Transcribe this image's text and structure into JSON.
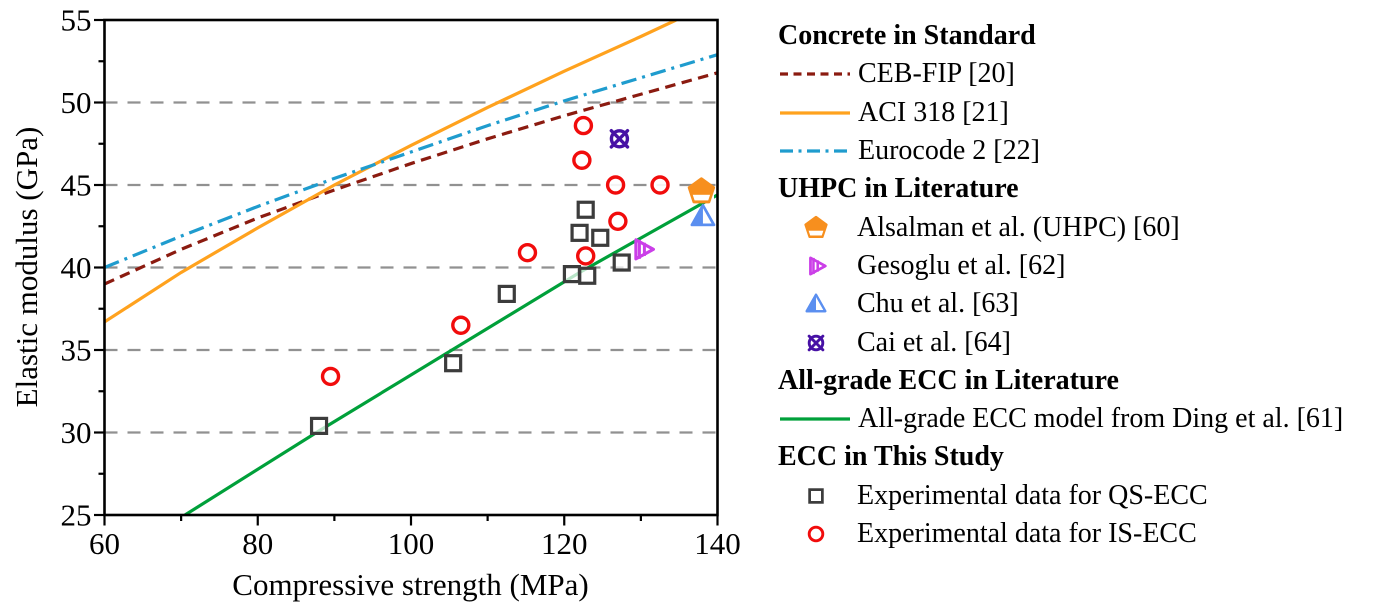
{
  "chart": {
    "xlabel": "Compressive strength (MPa)",
    "ylabel": "Elastic modulus (GPa)",
    "xlim": [
      60,
      140
    ],
    "ylim": [
      25,
      55
    ],
    "x_ticks": [
      60,
      80,
      100,
      120,
      140
    ],
    "x_minor_ticks": [
      70,
      90,
      110,
      130
    ],
    "y_ticks": [
      25,
      30,
      35,
      40,
      45,
      50,
      55
    ],
    "y_minor_ticks": [
      27.5,
      32.5,
      37.5,
      42.5,
      47.5,
      52.5
    ],
    "grid_y": [
      30,
      35,
      40,
      45,
      50
    ],
    "grid_on": true,
    "grid_color": "#919191",
    "frame_color": "#000000",
    "legend_position": "right-outside"
  },
  "chart_data": {
    "type": "scatter",
    "lines": [
      {
        "name": "CEB-FIP [20]",
        "style": "dashed",
        "color": "#8B1B10",
        "x": [
          60,
          70,
          80,
          90,
          100,
          110,
          120,
          130,
          140
        ],
        "y": [
          39.0,
          41.1,
          43.0,
          44.7,
          46.3,
          47.8,
          49.2,
          50.5,
          51.8
        ]
      },
      {
        "name": "ACI 318 [21]",
        "style": "solid",
        "color": "#FFA21E",
        "x": [
          60,
          70,
          80,
          90,
          100,
          110,
          120,
          130,
          134.6
        ],
        "y": [
          36.7,
          39.7,
          42.4,
          45.0,
          47.4,
          49.7,
          51.9,
          54.0,
          55.0
        ]
      },
      {
        "name": "Eurocode 2 [22]",
        "style": "dashdot",
        "color": "#1F9CCE",
        "x": [
          60,
          70,
          80,
          90,
          100,
          110,
          120,
          130,
          140
        ],
        "y": [
          40.0,
          41.9,
          43.7,
          45.4,
          47.0,
          48.6,
          50.1,
          51.5,
          52.9
        ]
      },
      {
        "name": "All-grade ECC model from Ding et al. [61]",
        "style": "solid",
        "color": "#00A03A",
        "x": [
          70.5,
          88,
          105,
          122,
          140
        ],
        "y": [
          25.0,
          30.1,
          34.9,
          39.7,
          44.4
        ]
      }
    ],
    "scatter": [
      {
        "name": "Alsalman et al. (UHPC) [60]",
        "marker": "pentagon-half",
        "color": "#F78F1E",
        "points": [
          [
            137.9,
            44.6
          ]
        ]
      },
      {
        "name": "Gesoglu et al. [62]",
        "marker": "triangle-right-bars",
        "color": "#CB3FE8",
        "points": [
          [
            130.2,
            41.1
          ]
        ]
      },
      {
        "name": "Chu et al. [63]",
        "marker": "triangle-half",
        "color": "#5B8FF0",
        "points": [
          [
            138.1,
            43.1
          ]
        ]
      },
      {
        "name": "Cai et al. [64]",
        "marker": "circle-x",
        "color": "#4711A5",
        "points": [
          [
            127.2,
            47.8
          ]
        ]
      },
      {
        "name": "Experimental data for QS-ECC",
        "marker": "square-open",
        "color": "#3C3C3C",
        "points": [
          [
            88,
            30.4
          ],
          [
            105.5,
            34.2
          ],
          [
            112.5,
            38.4
          ],
          [
            121,
            39.6
          ],
          [
            123,
            39.5
          ],
          [
            122,
            42.1
          ],
          [
            124.7,
            41.8
          ],
          [
            122.8,
            43.5
          ],
          [
            127.5,
            40.3
          ]
        ]
      },
      {
        "name": "Experimental data for IS-ECC",
        "marker": "circle-open",
        "color": "#F10C0C",
        "points": [
          [
            89.5,
            33.4
          ],
          [
            106.5,
            36.5
          ],
          [
            115.2,
            40.9
          ],
          [
            122.8,
            40.7
          ],
          [
            127,
            42.8
          ],
          [
            122.3,
            46.5
          ],
          [
            122.5,
            48.6
          ],
          [
            126.7,
            45.0
          ],
          [
            132.5,
            45.0
          ]
        ]
      }
    ]
  },
  "legend": {
    "rows": [
      {
        "kind": "header",
        "label": "Concrete in Standard"
      },
      {
        "kind": "line",
        "ref": 0,
        "label": "CEB-FIP [20]"
      },
      {
        "kind": "line",
        "ref": 1,
        "label": "ACI 318 [21]"
      },
      {
        "kind": "line",
        "ref": 2,
        "label": "Eurocode 2 [22]"
      },
      {
        "kind": "header",
        "label": "UHPC in Literature"
      },
      {
        "kind": "marker",
        "ref": 0,
        "label": "Alsalman et al. (UHPC) [60]"
      },
      {
        "kind": "marker",
        "ref": 1,
        "label": "Gesoglu et al. [62]"
      },
      {
        "kind": "marker",
        "ref": 2,
        "label": "Chu et al. [63]"
      },
      {
        "kind": "marker",
        "ref": 3,
        "label": "Cai et al. [64]"
      },
      {
        "kind": "header",
        "label": "All-grade ECC in Literature"
      },
      {
        "kind": "line",
        "ref": 3,
        "label": "All-grade ECC model from Ding et al. [61]"
      },
      {
        "kind": "header",
        "label": "ECC in This Study"
      },
      {
        "kind": "marker",
        "ref": 4,
        "label": "Experimental data for QS-ECC"
      },
      {
        "kind": "marker",
        "ref": 5,
        "label": "Experimental data for IS-ECC"
      }
    ]
  }
}
